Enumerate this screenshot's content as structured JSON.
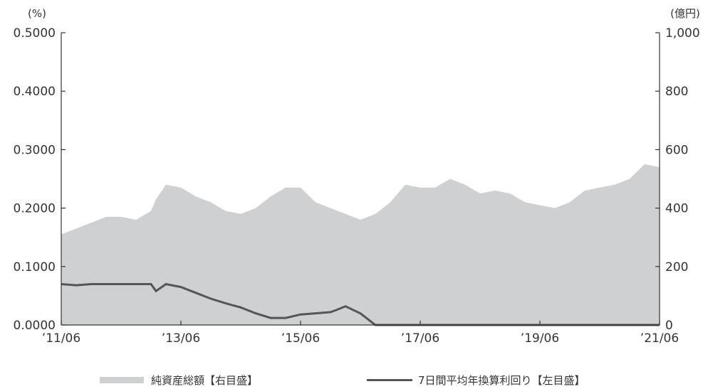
{
  "chart_data": {
    "type": "area",
    "title": "",
    "left_axis": {
      "unit": "(%)",
      "range": [
        0,
        0.5
      ],
      "ticks": [
        "0.0000",
        "0.1000",
        "0.2000",
        "0.3000",
        "0.4000",
        "0.5000"
      ]
    },
    "right_axis": {
      "unit": "(億円)",
      "range": [
        0,
        1000
      ],
      "ticks": [
        "0",
        "200",
        "400",
        "600",
        "800",
        "1,000"
      ]
    },
    "x_axis": {
      "range": [
        "2011-06",
        "2021-06"
      ],
      "ticks": [
        "’11/06",
        "’13/06",
        "’15/06",
        "’17/06",
        "’19/06",
        "’21/06"
      ]
    },
    "grid": false,
    "legend_position": "bottom",
    "series": [
      {
        "name": "純資産総額【右目盛】",
        "type": "area",
        "axis": "right",
        "color": "#cfd0d2",
        "x": [
          "2011-06",
          "2011-09",
          "2011-12",
          "2012-03",
          "2012-06",
          "2012-09",
          "2012-12",
          "2013-01",
          "2013-03",
          "2013-06",
          "2013-09",
          "2013-12",
          "2014-03",
          "2014-06",
          "2014-09",
          "2014-12",
          "2015-03",
          "2015-06",
          "2015-09",
          "2015-12",
          "2016-03",
          "2016-06",
          "2016-09",
          "2016-12",
          "2017-03",
          "2017-06",
          "2017-09",
          "2017-12",
          "2018-03",
          "2018-06",
          "2018-09",
          "2018-12",
          "2019-03",
          "2019-06",
          "2019-09",
          "2019-12",
          "2020-03",
          "2020-06",
          "2020-09",
          "2020-12",
          "2021-03",
          "2021-06"
        ],
        "values": [
          310,
          330,
          350,
          370,
          370,
          360,
          390,
          430,
          480,
          470,
          440,
          420,
          390,
          380,
          400,
          440,
          470,
          470,
          420,
          400,
          380,
          360,
          380,
          420,
          480,
          470,
          470,
          500,
          480,
          450,
          460,
          450,
          420,
          410,
          400,
          420,
          460,
          470,
          480,
          500,
          550,
          540
        ]
      },
      {
        "name": "7日間平均年換算利回り【左目盛】",
        "type": "line",
        "axis": "left",
        "color": "#555555",
        "x": [
          "2011-06",
          "2011-09",
          "2011-12",
          "2012-03",
          "2012-06",
          "2012-09",
          "2012-12",
          "2013-01",
          "2013-03",
          "2013-06",
          "2013-09",
          "2013-12",
          "2014-03",
          "2014-06",
          "2014-09",
          "2014-12",
          "2015-03",
          "2015-06",
          "2015-09",
          "2015-12",
          "2016-01",
          "2016-03",
          "2016-06",
          "2016-09",
          "2016-12",
          "2017-06",
          "2018-06",
          "2019-06",
          "2020-06",
          "2021-06"
        ],
        "values": [
          0.07,
          0.068,
          0.07,
          0.07,
          0.07,
          0.07,
          0.07,
          0.058,
          0.07,
          0.065,
          0.055,
          0.045,
          0.037,
          0.03,
          0.02,
          0.012,
          0.012,
          0.018,
          0.02,
          0.022,
          0.025,
          0.032,
          0.02,
          0.0,
          0.0,
          0.0,
          0.0,
          0.0,
          0.0,
          0.0
        ]
      }
    ]
  },
  "legend": {
    "area_label": "純資産総額【右目盛】",
    "line_label": "7日間平均年換算利回り【左目盛】"
  },
  "colors": {
    "area": "#cfd0d2",
    "line": "#555555",
    "axis": "#333333"
  }
}
